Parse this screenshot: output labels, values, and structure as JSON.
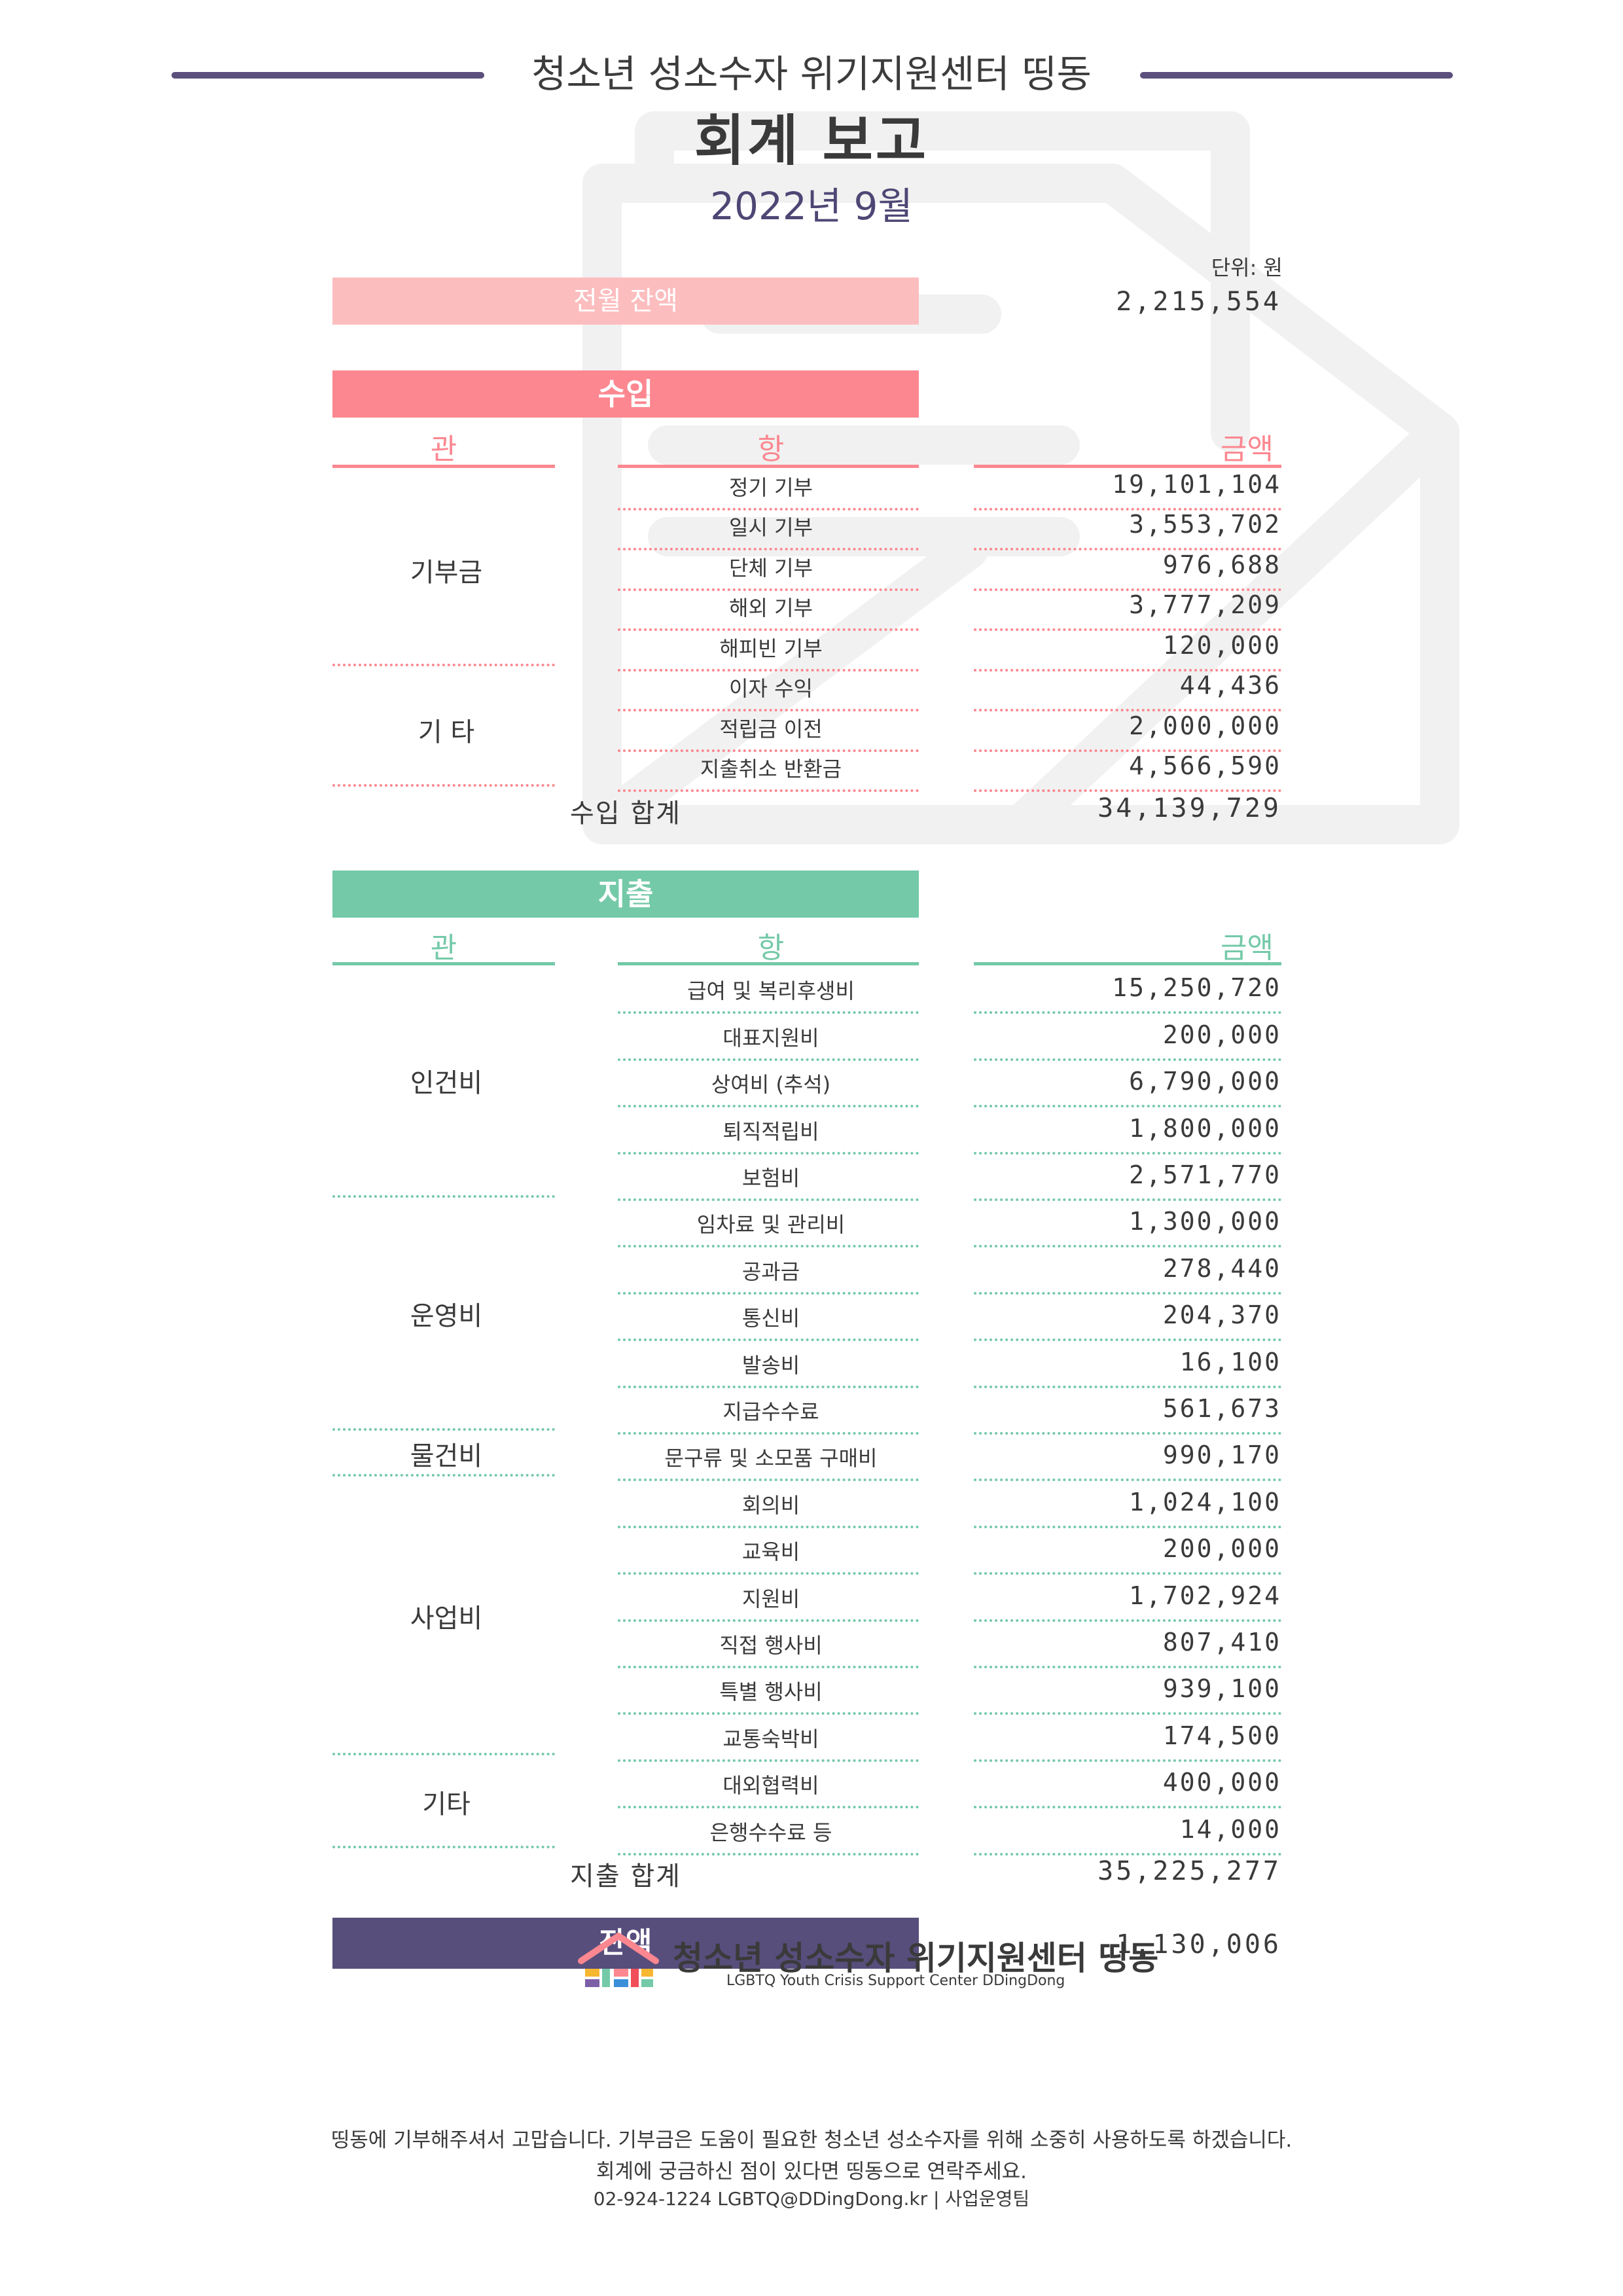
{
  "header": {
    "org_name": "청소년 성소수자 위기지원센터 띵동",
    "report_title": "회계 보고",
    "period": "2022년 9월"
  },
  "unit": "단위: 원",
  "prev_balance": {
    "label": "전월 잔액",
    "amount": "2,215,554"
  },
  "income": {
    "title": "수입",
    "col_gwan": "관",
    "col_hang": "항",
    "col_amount": "금액",
    "categories": [
      "기부금",
      "기 타"
    ],
    "items": [
      {
        "name": "정기 기부",
        "amount": "19,101,104"
      },
      {
        "name": "일시 기부",
        "amount": "3,553,702"
      },
      {
        "name": "단체 기부",
        "amount": "976,688"
      },
      {
        "name": "해외 기부",
        "amount": "3,777,209"
      },
      {
        "name": "해피빈 기부",
        "amount": "120,000"
      },
      {
        "name": "이자 수익",
        "amount": "44,436"
      },
      {
        "name": "적립금 이전",
        "amount": "2,000,000"
      },
      {
        "name": "지출취소 반환금",
        "amount": "4,566,590"
      }
    ],
    "total_label": "수입 합계",
    "total_amount": "34,139,729"
  },
  "expense": {
    "title": "지출",
    "col_gwan": "관",
    "col_hang": "항",
    "col_amount": "금액",
    "categories": [
      "인건비",
      "운영비",
      "물건비",
      "사업비",
      "기타"
    ],
    "items": [
      {
        "name": "급여 및 복리후생비",
        "amount": "15,250,720"
      },
      {
        "name": "대표지원비",
        "amount": "200,000"
      },
      {
        "name": "상여비 (추석)",
        "amount": "6,790,000"
      },
      {
        "name": "퇴직적립비",
        "amount": "1,800,000"
      },
      {
        "name": "보험비",
        "amount": "2,571,770"
      },
      {
        "name": "임차료 및 관리비",
        "amount": "1,300,000"
      },
      {
        "name": "공과금",
        "amount": "278,440"
      },
      {
        "name": "통신비",
        "amount": "204,370"
      },
      {
        "name": "발송비",
        "amount": "16,100"
      },
      {
        "name": "지급수수료",
        "amount": "561,673"
      },
      {
        "name": "문구류 및 소모품 구매비",
        "amount": "990,170"
      },
      {
        "name": "회의비",
        "amount": "1,024,100"
      },
      {
        "name": "교육비",
        "amount": "200,000"
      },
      {
        "name": "지원비",
        "amount": "1,702,924"
      },
      {
        "name": "직접 행사비",
        "amount": "807,410"
      },
      {
        "name": "특별 행사비",
        "amount": "939,100"
      },
      {
        "name": "교통숙박비",
        "amount": "174,500"
      },
      {
        "name": "대외협력비",
        "amount": "400,000"
      },
      {
        "name": "은행수수료 등",
        "amount": "14,000"
      }
    ],
    "total_label": "지출 합계",
    "total_amount": "35,225,277"
  },
  "balance": {
    "label": "잔액",
    "amount": "1,130,006"
  },
  "footer": {
    "line1": "띵동에 기부해주셔서 고맙습니다. 기부금은 도움이 필요한 청소년 성소수자를 위해 소중히 사용하도록 하겠습니다.",
    "line2": "회계에 궁금하신 점이 있다면 띵동으로 연락주세요.",
    "contact": "02-924-1224   LGBTQ@DDingDong.kr   |   사업운영팀",
    "logo_name": "청소년 성소수자 위기지원센터 띵동",
    "logo_sub": "LGBTQ Youth Crisis Support Center  DDingDong"
  },
  "colors": {
    "accent_purple": "#5b4f7c",
    "income_pink": "#fc8790",
    "prev_balance_pink": "#fcbdbf",
    "expense_green": "#74c9a8",
    "balance_purple": "#574e7c"
  }
}
